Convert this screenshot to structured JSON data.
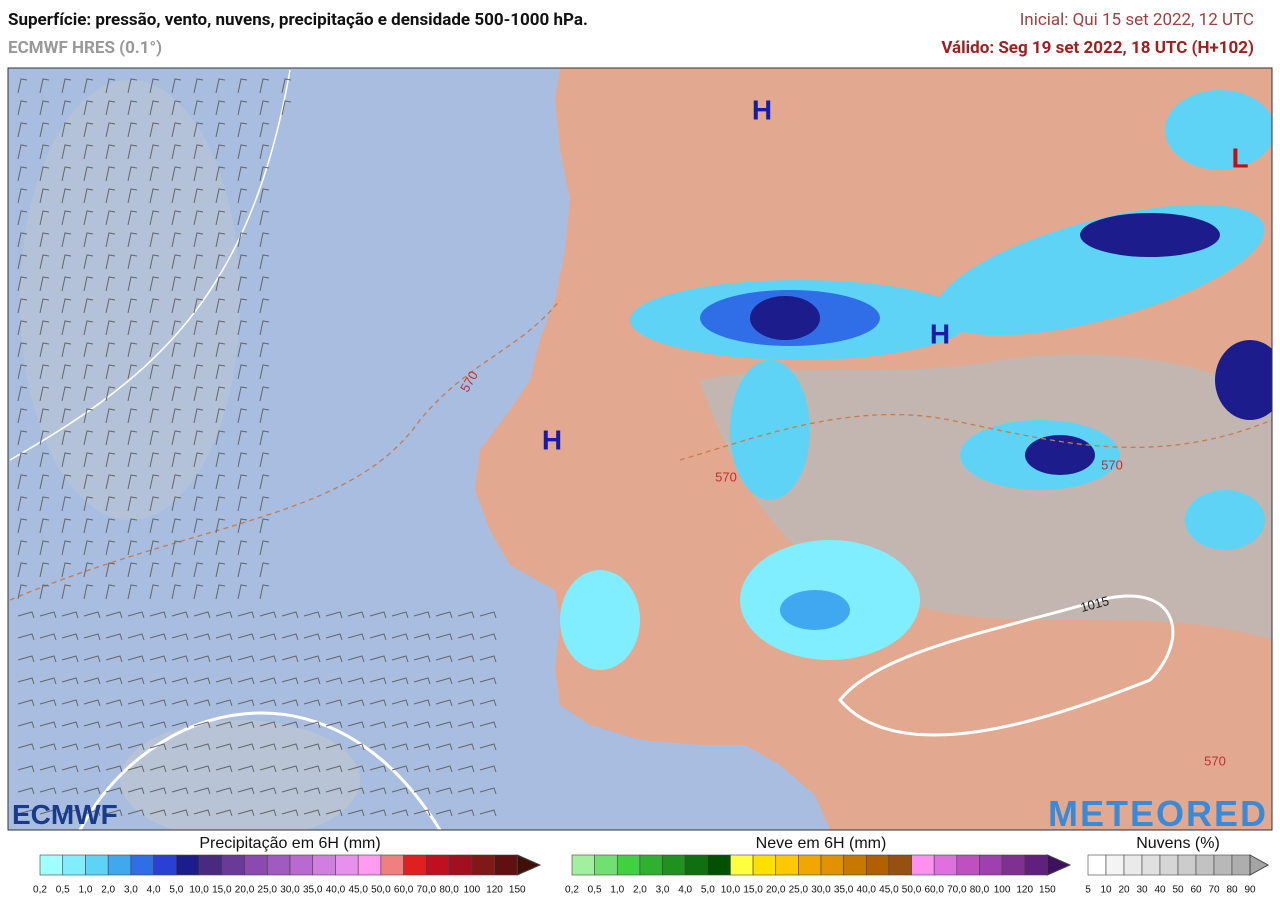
{
  "header": {
    "title": "Superfície: pressão, vento, nuvens, precipitação e densidade 500-1000 hPa.",
    "model": "ECMWF HRES (0.1°)",
    "initial": "Inicial: Qui 15 set 2022, 12 UTC",
    "valid": "Válido: Seg 19 set 2022, 18 UTC (H+102)"
  },
  "map": {
    "pressure_centers": [
      "H",
      "H",
      "H",
      "L"
    ],
    "contours": [
      "570",
      "570",
      "570",
      "570",
      "1015"
    ],
    "logos": [
      "ECMWF",
      "METEORED"
    ]
  },
  "legends": [
    {
      "title": "Precipitação em 6H (mm)",
      "colors": [
        "#a0ffff",
        "#80eeff",
        "#5fd3f5",
        "#3fa8f0",
        "#2f6ee6",
        "#2a3fd6",
        "#1c1c8c",
        "#4a2a80",
        "#6a3a9a",
        "#8a4ab0",
        "#a05ac0",
        "#b86ad0",
        "#d07ee0",
        "#e890ee",
        "#ff9cf0",
        "#f08080",
        "#e02020",
        "#c01020",
        "#a01020",
        "#801818",
        "#601010",
        "#401008"
      ],
      "ticks": [
        "0,2",
        "0,5",
        "1,0",
        "2,0",
        "3,0",
        "4,0",
        "5,0",
        "10,0",
        "15,0",
        "20,0",
        "25,0",
        "30,0",
        "35,0",
        "40,0",
        "45,0",
        "50,0",
        "60,0",
        "70,0",
        "80,0",
        "100",
        "120",
        "150"
      ]
    },
    {
      "title": "Neve em 6H (mm)",
      "colors": [
        "#a0f0a0",
        "#70e070",
        "#40d040",
        "#30b030",
        "#209020",
        "#107010",
        "#005000",
        "#ffff40",
        "#ffe000",
        "#ffc800",
        "#f0a800",
        "#e09000",
        "#c87800",
        "#b06000",
        "#985010",
        "#ff90f0",
        "#e070e0",
        "#c050c0",
        "#a040b0",
        "#803090",
        "#602080",
        "#401060"
      ],
      "ticks": [
        "0,2",
        "0,5",
        "1,0",
        "2,0",
        "3,0",
        "4,0",
        "5,0",
        "10,0",
        "15,0",
        "20,0",
        "25,0",
        "30,0",
        "35,0",
        "40,0",
        "45,0",
        "50,0",
        "60,0",
        "70,0",
        "80,0",
        "100",
        "120",
        "150"
      ]
    },
    {
      "title": "Nuvens (%)",
      "colors": [
        "#ffffff",
        "#f4f4f4",
        "#eaeaea",
        "#e0e0e0",
        "#d6d6d6",
        "#cccccc",
        "#c2c2c2",
        "#b8b8b8",
        "#aeaeae",
        "#a4a4a4"
      ],
      "ticks": [
        "5",
        "10",
        "20",
        "30",
        "40",
        "50",
        "60",
        "70",
        "80",
        "90"
      ]
    }
  ]
}
